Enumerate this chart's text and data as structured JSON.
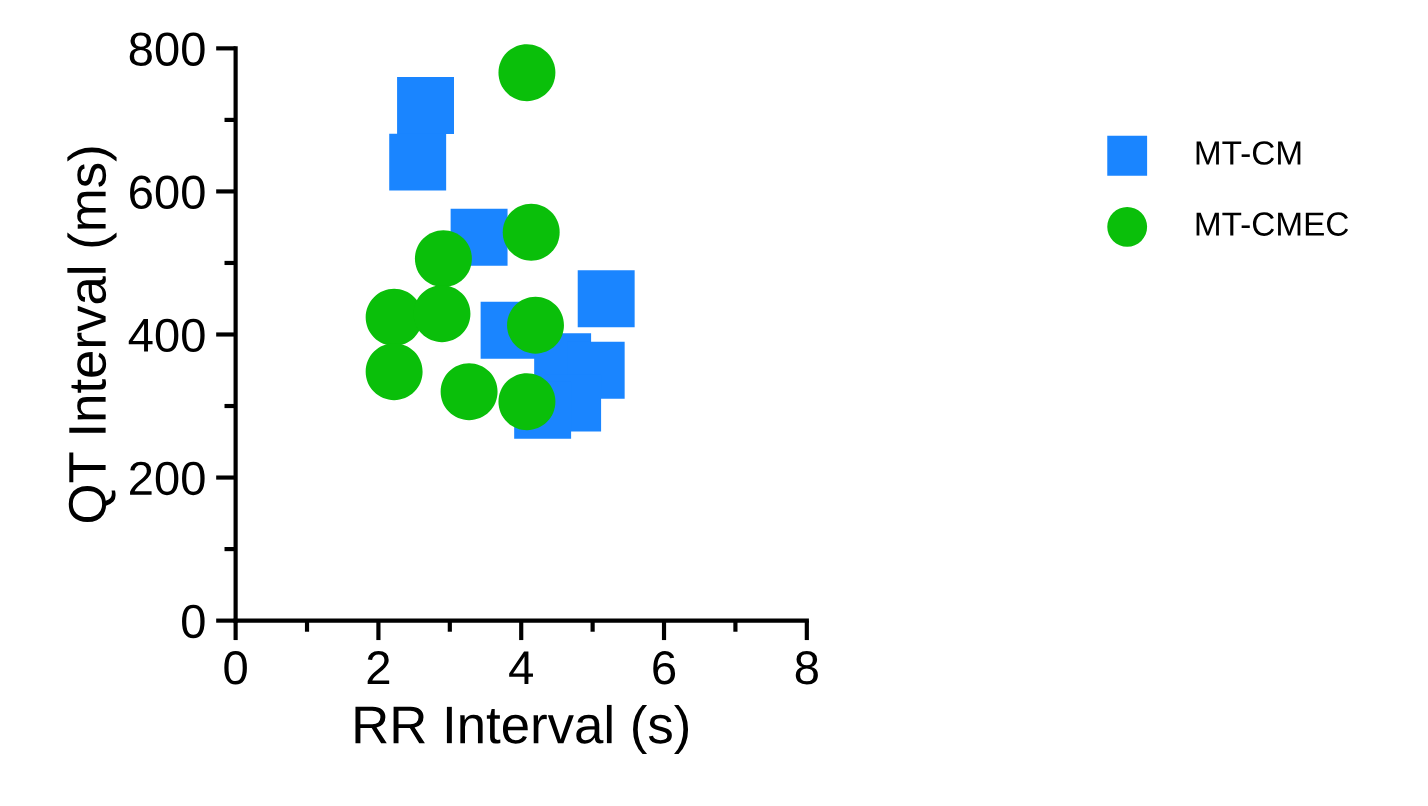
{
  "chart_data": {
    "type": "scatter",
    "xlabel": "RR Interval (s)",
    "ylabel": "QT Interval (ms)",
    "xlim": [
      0,
      8
    ],
    "xticks": [
      0,
      2,
      4,
      6,
      8
    ],
    "ylim": [
      0,
      800
    ],
    "yticks": [
      0,
      200,
      400,
      600,
      800
    ],
    "grid": false,
    "legend": "right",
    "series": [
      {
        "name": "MT-CM",
        "color": "#1a85ff",
        "marker": "square",
        "x": [
          2.66,
          2.55,
          3.41,
          5.19,
          3.83,
          4.58,
          5.05,
          4.72,
          4.3
        ],
        "values": [
          720,
          641,
          536,
          450,
          406,
          362,
          350,
          304,
          294
        ]
      },
      {
        "name": "MT-CMEC",
        "color": "#0abf0a",
        "marker": "circle",
        "x": [
          4.08,
          4.14,
          2.91,
          2.22,
          2.89,
          4.2,
          2.22,
          3.27,
          4.08
        ],
        "values": [
          766,
          543,
          506,
          424,
          429,
          413,
          348,
          320,
          306
        ]
      }
    ]
  }
}
